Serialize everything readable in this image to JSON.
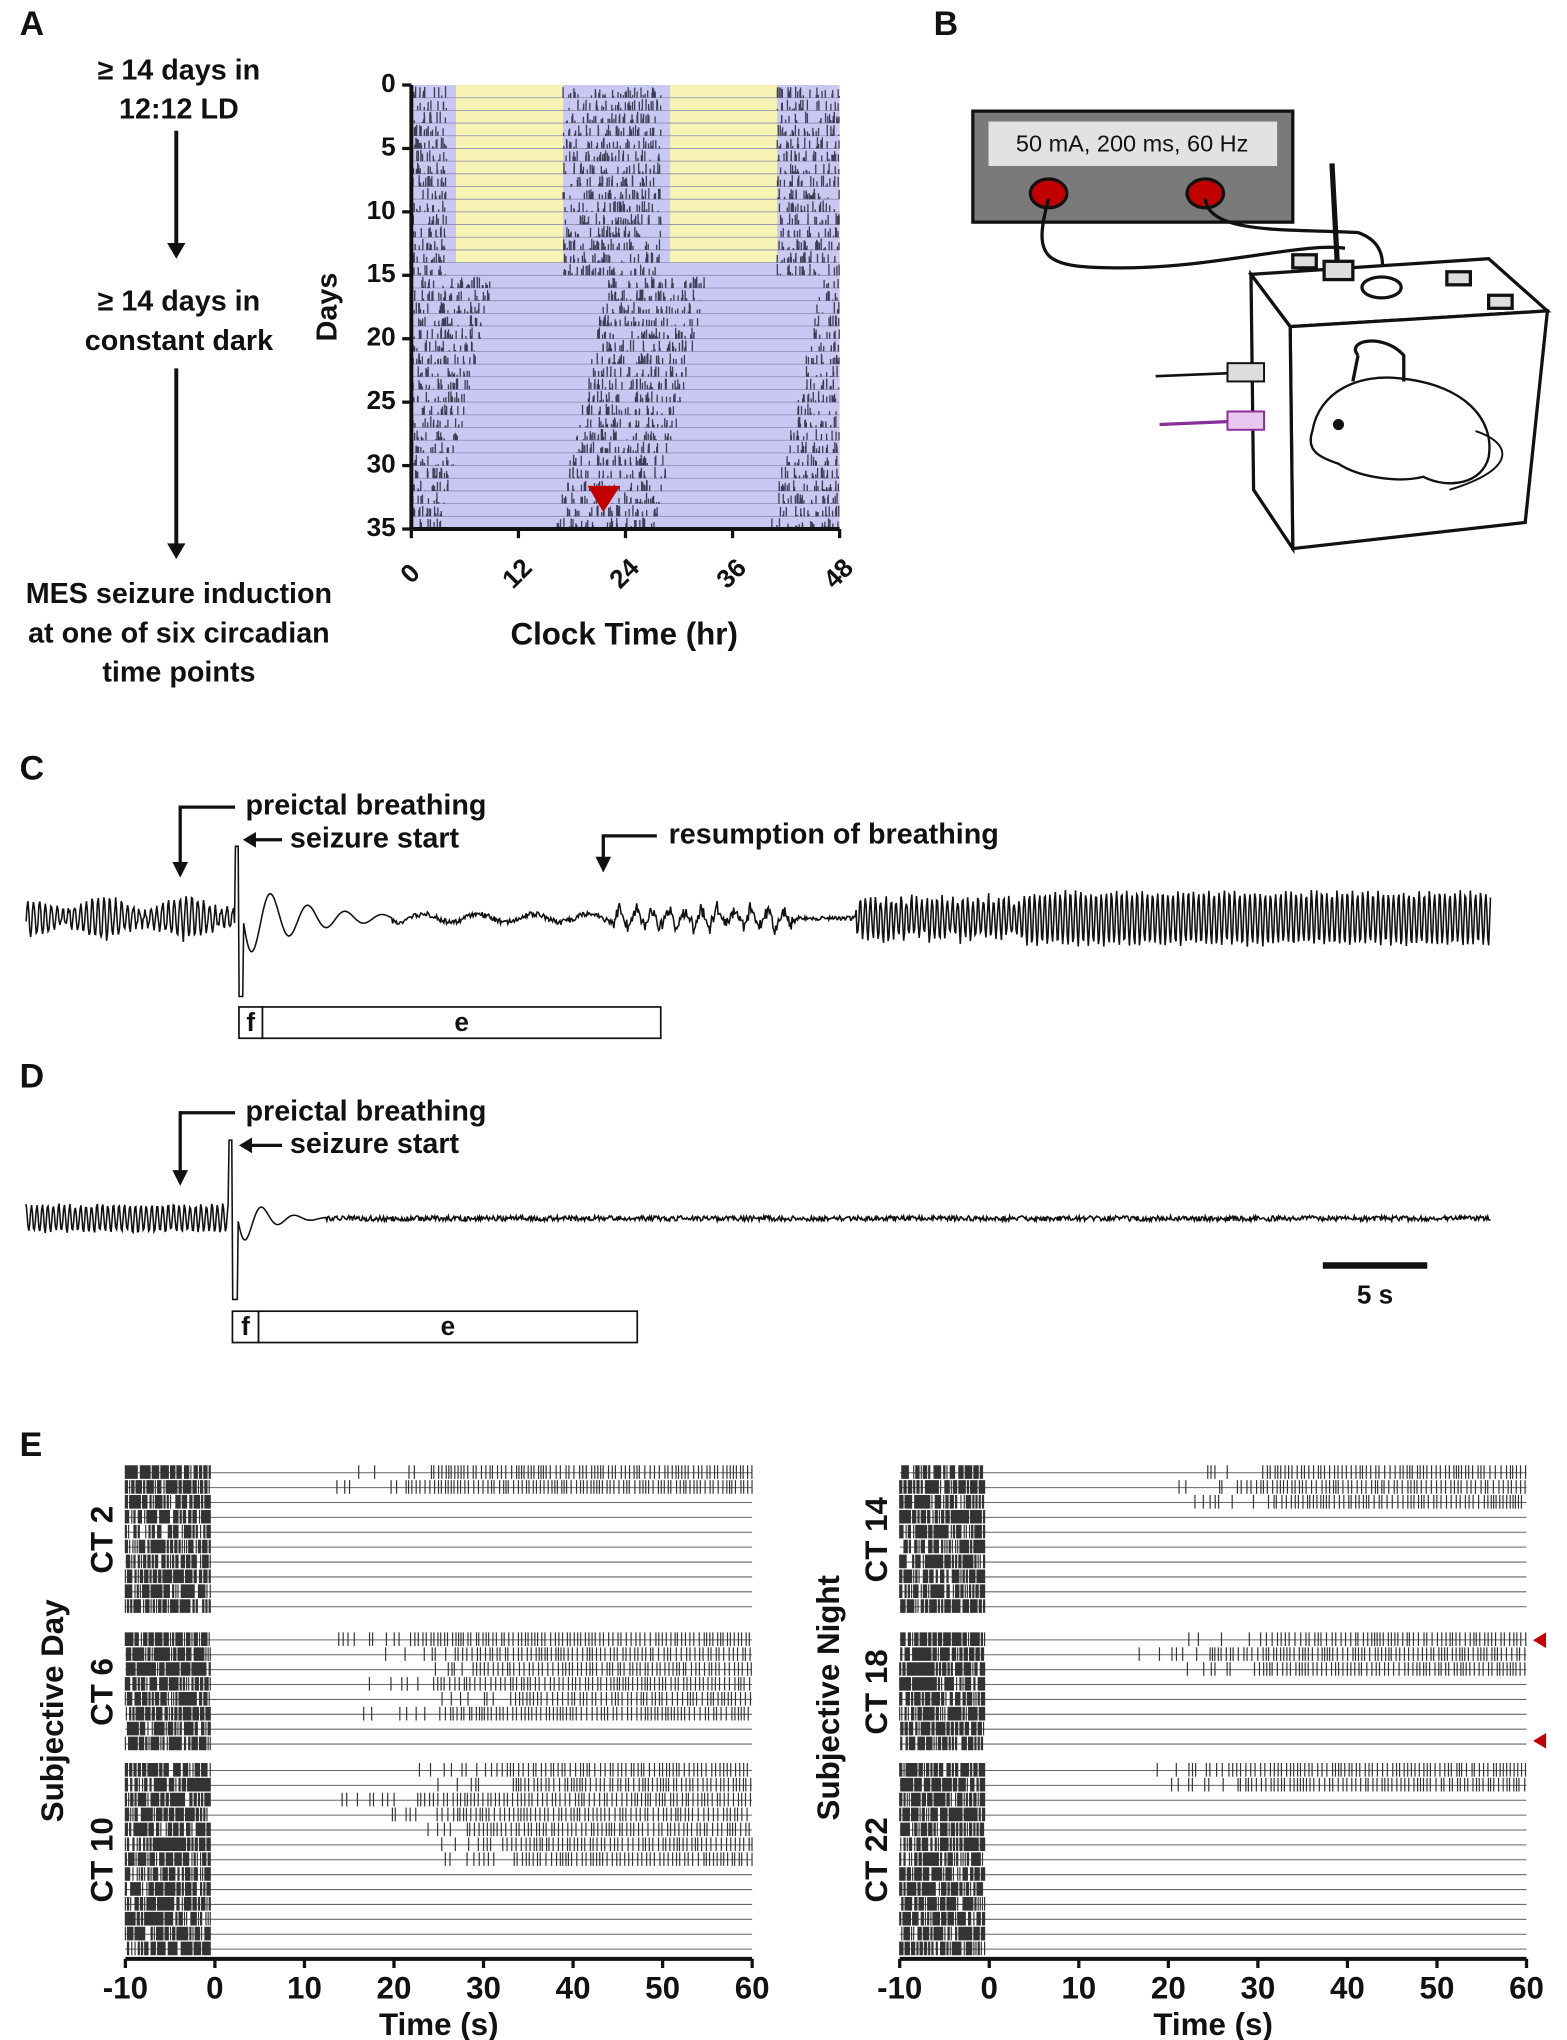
{
  "panel_labels": [
    "A",
    "B",
    "C",
    "D",
    "E"
  ],
  "protocol_steps": [
    [
      "≥ 14 days in",
      "12:12 LD"
    ],
    [
      "≥ 14 days in",
      "constant dark"
    ],
    [
      "MES seizure induction",
      "at one of six circadian",
      "time points"
    ]
  ],
  "actogram": {
    "ylabel": "Days",
    "xlabel": "Clock Time (hr)",
    "ylim": [
      0,
      35
    ],
    "yticks": [
      0,
      5,
      10,
      15,
      20,
      25,
      30,
      35
    ],
    "xlim": [
      0,
      48
    ],
    "xticks": [
      0,
      12,
      24,
      36,
      48
    ],
    "light_days": [
      0,
      14
    ],
    "light_hours": [
      [
        5,
        17
      ],
      [
        29,
        41
      ]
    ]
  },
  "stimulator": {
    "setting": "50 mA, 200 ms, 60 Hz"
  },
  "trace_c": {
    "annotations": [
      "preictal breathing",
      "seizure start",
      "resumption of breathing"
    ],
    "phases": [
      "f",
      "e"
    ]
  },
  "trace_d": {
    "annotations": [
      "preictal breathing",
      "seizure start"
    ],
    "phases": [
      "f",
      "e"
    ],
    "scale_bar": "5 s"
  },
  "raster": {
    "xlabel": "Time (s)",
    "xlim": [
      -10,
      60
    ],
    "xticks": [
      -10,
      0,
      10,
      20,
      30,
      40,
      50,
      60
    ],
    "groups": [
      {
        "label": "Subjective Day",
        "rows": [
          "CT 2",
          "CT 6",
          "CT 10"
        ]
      },
      {
        "label": "Subjective Night",
        "rows": [
          "CT 14",
          "CT 18",
          "CT 22"
        ]
      }
    ]
  }
}
